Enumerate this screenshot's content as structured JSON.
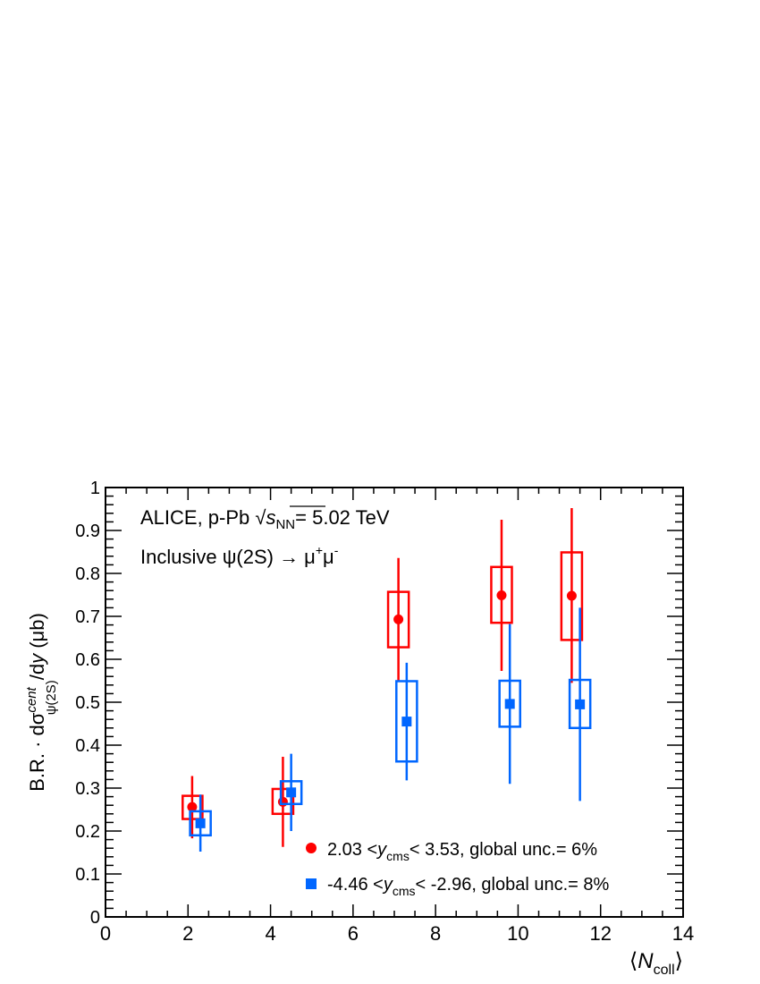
{
  "chart_data": {
    "type": "scatter",
    "annotation_line1_prefix": "ALICE, p-Pb ",
    "annotation_line1_suffix": "= 5.02 TeV",
    "annotation_sqrt_s": "s",
    "annotation_sqrt_sub": "NN",
    "annotation_line2": "Inclusive ψ(2S) → μ",
    "annotation_line2_sup1": "+",
    "annotation_line2_mu2": "μ",
    "annotation_line2_sup2": "-",
    "ylabel_parts": {
      "prefix": "B.R. · dσ",
      "sup": "cent",
      "sub": "ψ(2S)",
      "mid": "/d",
      "var": "y",
      "suffix": " (μb)"
    },
    "xlabel_parts": {
      "open": "⟨",
      "var": "N",
      "sub": "coll",
      "close": "⟩"
    },
    "xlim": [
      0,
      14
    ],
    "ylim": [
      0,
      1
    ],
    "xticks": [
      "0",
      "2",
      "4",
      "6",
      "8",
      "10",
      "12",
      "14"
    ],
    "yticks": [
      "0",
      "0.1",
      "0.2",
      "0.3",
      "0.4",
      "0.5",
      "0.6",
      "0.7",
      "0.8",
      "0.9",
      "1"
    ],
    "legend_position": "bottom-right",
    "series": [
      {
        "legend_prefix": "2.03 <",
        "legend_var": "y",
        "legend_sub": "cms",
        "legend_suffix": "< 3.53, global unc.= 6%",
        "color": "#ff0000",
        "marker": "circle",
        "points": [
          {
            "x": 2.1,
            "y": 0.256,
            "stat": [
              0.183,
              0.328
            ],
            "syst": [
              0.228,
              0.282
            ],
            "box_x": [
              1.87,
              2.35
            ]
          },
          {
            "x": 4.3,
            "y": 0.268,
            "stat": [
              0.163,
              0.373
            ],
            "syst": [
              0.24,
              0.298
            ],
            "box_x": [
              4.05,
              4.55
            ]
          },
          {
            "x": 7.1,
            "y": 0.693,
            "stat": [
              0.548,
              0.836
            ],
            "syst": [
              0.628,
              0.757
            ],
            "box_x": [
              6.85,
              7.35
            ]
          },
          {
            "x": 9.6,
            "y": 0.749,
            "stat": [
              0.573,
              0.925
            ],
            "syst": [
              0.685,
              0.815
            ],
            "box_x": [
              9.35,
              9.85
            ]
          },
          {
            "x": 11.3,
            "y": 0.748,
            "stat": [
              0.545,
              0.952
            ],
            "syst": [
              0.645,
              0.849
            ],
            "box_x": [
              11.05,
              11.55
            ]
          }
        ]
      },
      {
        "legend_prefix": "-4.46 <",
        "legend_var": "y",
        "legend_sub": "cms",
        "legend_suffix": "< -2.96, global unc.= 8%",
        "color": "#0066ff",
        "marker": "square",
        "points": [
          {
            "x": 2.3,
            "y": 0.218,
            "stat": [
              0.152,
              0.285
            ],
            "syst": [
              0.19,
              0.246
            ],
            "box_x": [
              2.05,
              2.55
            ]
          },
          {
            "x": 4.5,
            "y": 0.29,
            "stat": [
              0.2,
              0.38
            ],
            "syst": [
              0.263,
              0.316
            ],
            "box_x": [
              4.25,
              4.75
            ]
          },
          {
            "x": 7.3,
            "y": 0.455,
            "stat": [
              0.318,
              0.592
            ],
            "syst": [
              0.362,
              0.549
            ],
            "box_x": [
              7.05,
              7.55
            ]
          },
          {
            "x": 9.8,
            "y": 0.496,
            "stat": [
              0.31,
              0.682
            ],
            "syst": [
              0.443,
              0.55
            ],
            "box_x": [
              9.55,
              10.05
            ]
          },
          {
            "x": 11.5,
            "y": 0.495,
            "stat": [
              0.27,
              0.72
            ],
            "syst": [
              0.44,
              0.552
            ],
            "box_x": [
              11.25,
              11.75
            ]
          }
        ]
      }
    ]
  }
}
